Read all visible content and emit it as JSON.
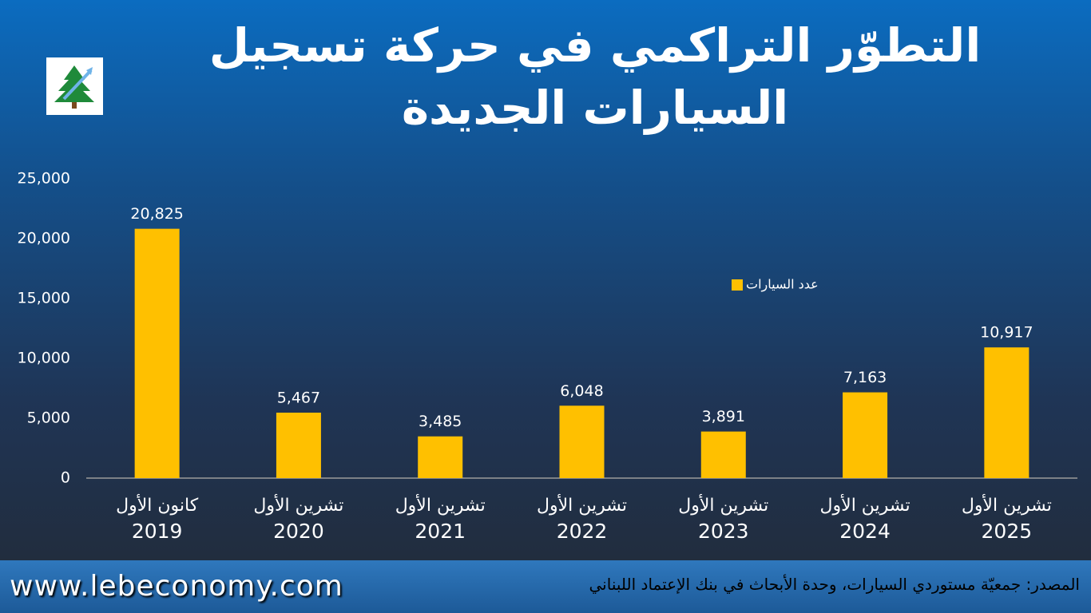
{
  "chart_data": {
    "type": "bar",
    "title": "التطوّر التراكمي في حركة تسجيل السيارات الجديدة",
    "categories": [
      [
        "كانون الأول",
        "2019"
      ],
      [
        "تشرين الأول",
        "2020"
      ],
      [
        "تشرين الأول",
        "2021"
      ],
      [
        "تشرين الأول",
        "2022"
      ],
      [
        "تشرين الأول",
        "2023"
      ],
      [
        "تشرين الأول",
        "2024"
      ],
      [
        "تشرين الأول",
        "2025"
      ]
    ],
    "series": [
      {
        "name": "عدد السيارات",
        "color": "#ffc000",
        "values": [
          20825,
          5467,
          3485,
          6048,
          3891,
          7163,
          10917
        ],
        "value_labels": [
          "20,825",
          "5,467",
          "3,485",
          "6,048",
          "3,891",
          "7,163",
          "10,917"
        ]
      }
    ],
    "ylim": [
      0,
      25000
    ],
    "yticks": [
      0,
      {
        "value": 5000,
        "label": "5,000"
      },
      {
        "value": 10000,
        "label": "10,000"
      },
      {
        "value": 15000,
        "label": "15,000"
      },
      {
        "value": 20000,
        "label": "20,000"
      },
      {
        "value": 25000,
        "label": "25,000"
      }
    ],
    "grid": false
  },
  "footer": {
    "website": "www.lebeconomy.com",
    "source": "المصدر: جمعيّة مستوردي السيارات، وحدة الأبحاث في بنك الإعتماد اللبناني"
  }
}
